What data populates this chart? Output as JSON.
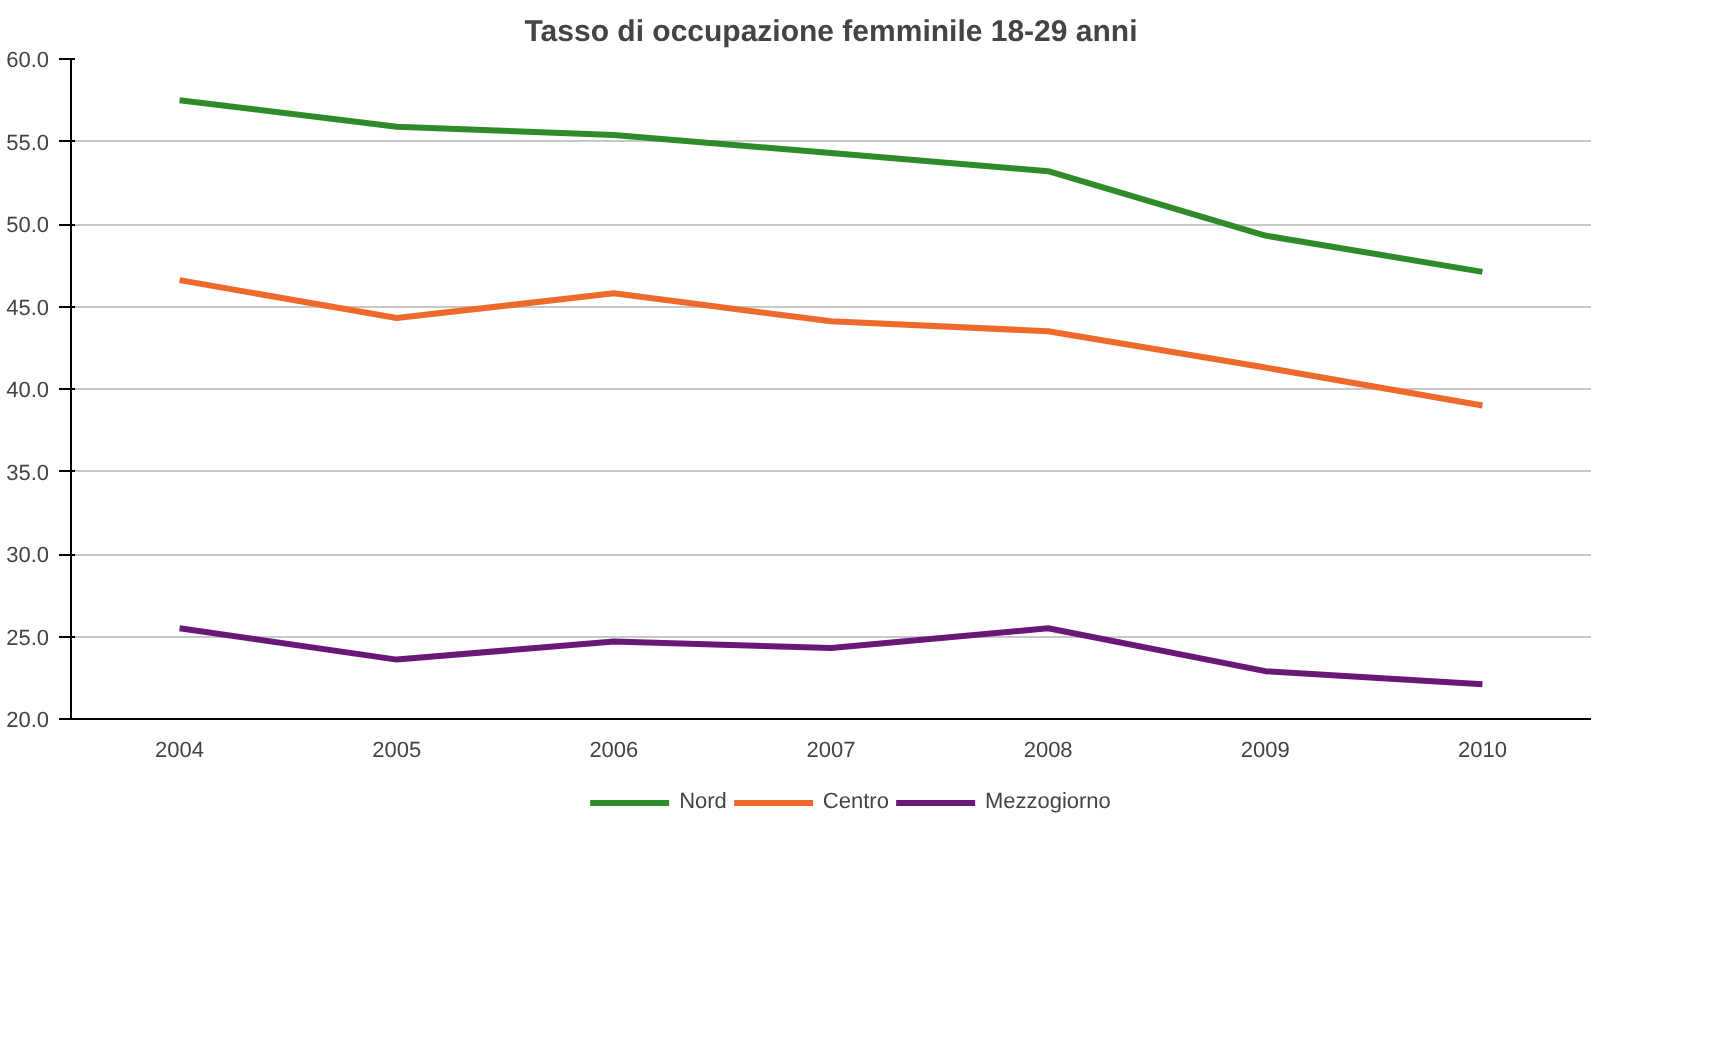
{
  "chart_data": {
    "type": "line",
    "title": "Tasso di occupazione femminile 18-29 anni",
    "categories": [
      "2004",
      "2005",
      "2006",
      "2007",
      "2008",
      "2009",
      "2010"
    ],
    "series": [
      {
        "name": "Nord",
        "color": "#2f8a2a",
        "values": [
          57.5,
          55.9,
          55.4,
          54.3,
          53.2,
          49.3,
          47.1
        ]
      },
      {
        "name": "Centro",
        "color": "#ee6a2c",
        "values": [
          46.6,
          44.3,
          45.8,
          44.1,
          43.5,
          41.3,
          39.0
        ]
      },
      {
        "name": "Mezzogiorno",
        "color": "#6a1877",
        "values": [
          25.5,
          23.6,
          24.7,
          24.3,
          25.5,
          22.9,
          22.1
        ]
      }
    ],
    "ylim": [
      20,
      60
    ],
    "yticks": [
      {
        "value": 20,
        "label": "20.0"
      },
      {
        "value": 25,
        "label": "25.0"
      },
      {
        "value": 30,
        "label": "30.0"
      },
      {
        "value": 35,
        "label": "35.0"
      },
      {
        "value": 40,
        "label": "40.0"
      },
      {
        "value": 45,
        "label": "45.0"
      },
      {
        "value": 50,
        "label": "50.0"
      },
      {
        "value": 55,
        "label": "55.0"
      },
      {
        "value": 60,
        "label": "60.0"
      }
    ],
    "grid": "y",
    "legend": "bottom",
    "marker": "none",
    "line_style": "solid"
  }
}
